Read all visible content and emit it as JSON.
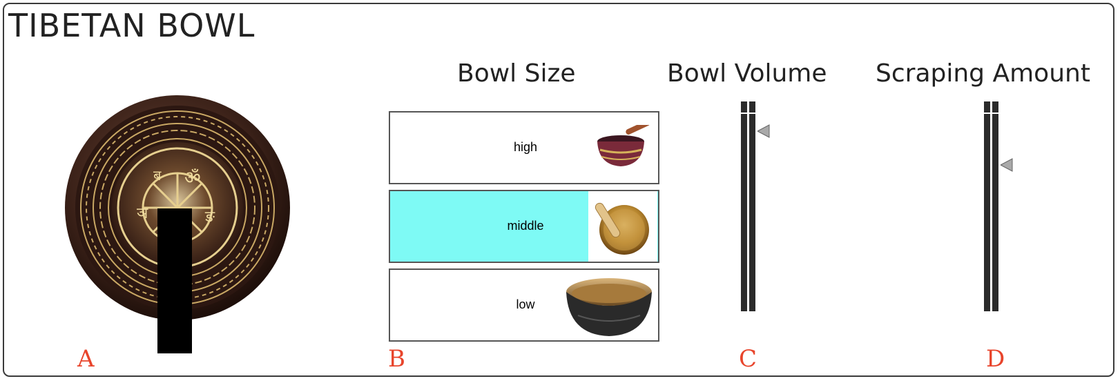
{
  "app": {
    "title": "TIBETAN BOWL"
  },
  "sections": {
    "bowl_size": {
      "heading": "Bowl Size",
      "letter": "B"
    },
    "bowl_volume": {
      "heading": "Bowl Volume",
      "letter": "C",
      "value_fraction": 0.11
    },
    "scraping_amount": {
      "heading": "Scraping Amount",
      "letter": "D",
      "value_fraction": 0.27
    },
    "bowl_display": {
      "letter": "A"
    }
  },
  "size_options": [
    {
      "label": "high",
      "selected": false,
      "icon": "small-red-bowl-icon"
    },
    {
      "label": "middle",
      "selected": true,
      "icon": "golden-bowl-with-stick-icon"
    },
    {
      "label": "low",
      "selected": false,
      "icon": "large-dark-bowl-icon"
    }
  ],
  "colors": {
    "selected_fill": "#7efaf5",
    "letter_color": "#e8452c",
    "rail_color": "#2b2b2b",
    "handle_color": "#a9a9a9"
  }
}
